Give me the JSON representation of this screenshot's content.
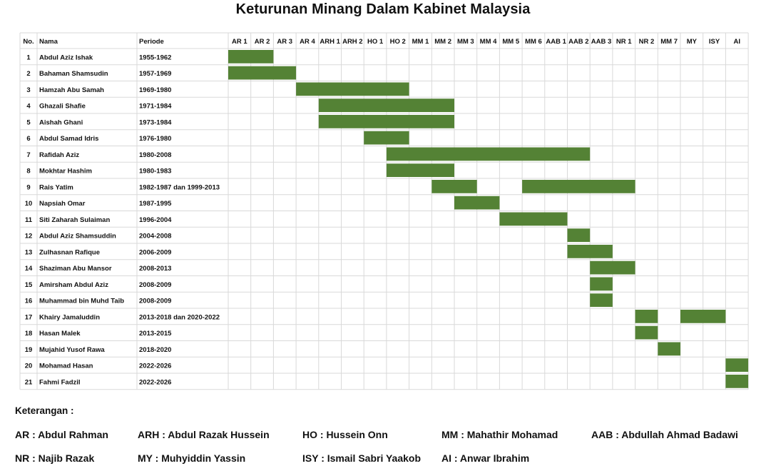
{
  "title": "Keturunan Minang Dalam Kabinet Malaysia",
  "colors": {
    "bar": "#548235",
    "grid": "#d9d9d9"
  },
  "chart_data": {
    "type": "gantt",
    "title": "Keturunan Minang Dalam Kabinet Malaysia",
    "columns": {
      "no": "No.",
      "name": "Nama",
      "period": "Periode"
    },
    "cabinets": [
      "AR 1",
      "AR 2",
      "AR 3",
      "AR 4",
      "ARH 1",
      "ARH 2",
      "HO 1",
      "HO 2",
      "MM 1",
      "MM 2",
      "MM 3",
      "MM 4",
      "MM 5",
      "MM 6",
      "AAB 1",
      "AAB 2",
      "AAB 3",
      "NR 1",
      "NR 2",
      "MM 7",
      "MY",
      "ISY",
      "AI"
    ],
    "rows": [
      {
        "no": "1",
        "name": "Abdul Aziz Ishak",
        "period": "1955-1962",
        "spans": [
          [
            0,
            2
          ]
        ]
      },
      {
        "no": "2",
        "name": "Bahaman Shamsudin",
        "period": "1957-1969",
        "spans": [
          [
            0,
            3
          ]
        ]
      },
      {
        "no": "3",
        "name": "Hamzah Abu Samah",
        "period": "1969-1980",
        "spans": [
          [
            3,
            8
          ]
        ]
      },
      {
        "no": "4",
        "name": "Ghazali Shafie",
        "period": "1971-1984",
        "spans": [
          [
            4,
            10
          ]
        ]
      },
      {
        "no": "5",
        "name": "Aishah Ghani",
        "period": "1973-1984",
        "spans": [
          [
            4,
            10
          ]
        ]
      },
      {
        "no": "6",
        "name": "Abdul Samad Idris",
        "period": "1976-1980",
        "spans": [
          [
            6,
            8
          ]
        ]
      },
      {
        "no": "7",
        "name": "Rafidah Aziz",
        "period": "1980-2008",
        "spans": [
          [
            7,
            16
          ]
        ]
      },
      {
        "no": "8",
        "name": "Mokhtar Hashim",
        "period": "1980-1983",
        "spans": [
          [
            7,
            10
          ]
        ]
      },
      {
        "no": "9",
        "name": "Rais Yatim",
        "period": "1982-1987 dan 1999-2013",
        "spans": [
          [
            9,
            11
          ],
          [
            13,
            18
          ]
        ]
      },
      {
        "no": "10",
        "name": "Napsiah Omar",
        "period": "1987-1995",
        "spans": [
          [
            10,
            12
          ]
        ]
      },
      {
        "no": "11",
        "name": "Siti Zaharah Sulaiman",
        "period": "1996-2004",
        "spans": [
          [
            12,
            15
          ]
        ]
      },
      {
        "no": "12",
        "name": "Abdul Aziz Shamsuddin",
        "period": "2004-2008",
        "spans": [
          [
            15,
            16
          ]
        ]
      },
      {
        "no": "13",
        "name": "Zulhasnan Rafique",
        "period": "2006-2009",
        "spans": [
          [
            15,
            17
          ]
        ]
      },
      {
        "no": "14",
        "name": "Shaziman Abu Mansor",
        "period": "2008-2013",
        "spans": [
          [
            16,
            18
          ]
        ]
      },
      {
        "no": "15",
        "name": "Amirsham Abdul Aziz",
        "period": "2008-2009",
        "spans": [
          [
            16,
            17
          ]
        ]
      },
      {
        "no": "16",
        "name": "Muhammad bin Muhd Taib",
        "period": "2008-2009",
        "spans": [
          [
            16,
            17
          ]
        ]
      },
      {
        "no": "17",
        "name": "Khairy Jamaluddin",
        "period": "2013-2018 dan 2020-2022",
        "spans": [
          [
            18,
            19
          ],
          [
            20,
            22
          ]
        ]
      },
      {
        "no": "18",
        "name": "Hasan Malek",
        "period": "2013-2015",
        "spans": [
          [
            18,
            19
          ]
        ]
      },
      {
        "no": "19",
        "name": "Mujahid Yusof Rawa",
        "period": "2018-2020",
        "spans": [
          [
            19,
            20
          ]
        ]
      },
      {
        "no": "20",
        "name": "Mohamad Hasan",
        "period": "2022-2026",
        "spans": [
          [
            22,
            23
          ]
        ]
      },
      {
        "no": "21",
        "name": "Fahmi Fadzil",
        "period": "2022-2026",
        "spans": [
          [
            22,
            23
          ]
        ]
      }
    ]
  },
  "legend": {
    "title": "Keterangan :",
    "items": [
      "AR : Abdul Rahman",
      "ARH : Abdul Razak Hussein",
      "HO : Hussein Onn",
      "MM : Mahathir Mohamad",
      "AAB : Abdullah Ahmad Badawi",
      "NR : Najib Razak",
      "MY : Muhyiddin Yassin",
      "ISY : Ismail Sabri Yaakob",
      "AI : Anwar Ibrahim"
    ]
  }
}
